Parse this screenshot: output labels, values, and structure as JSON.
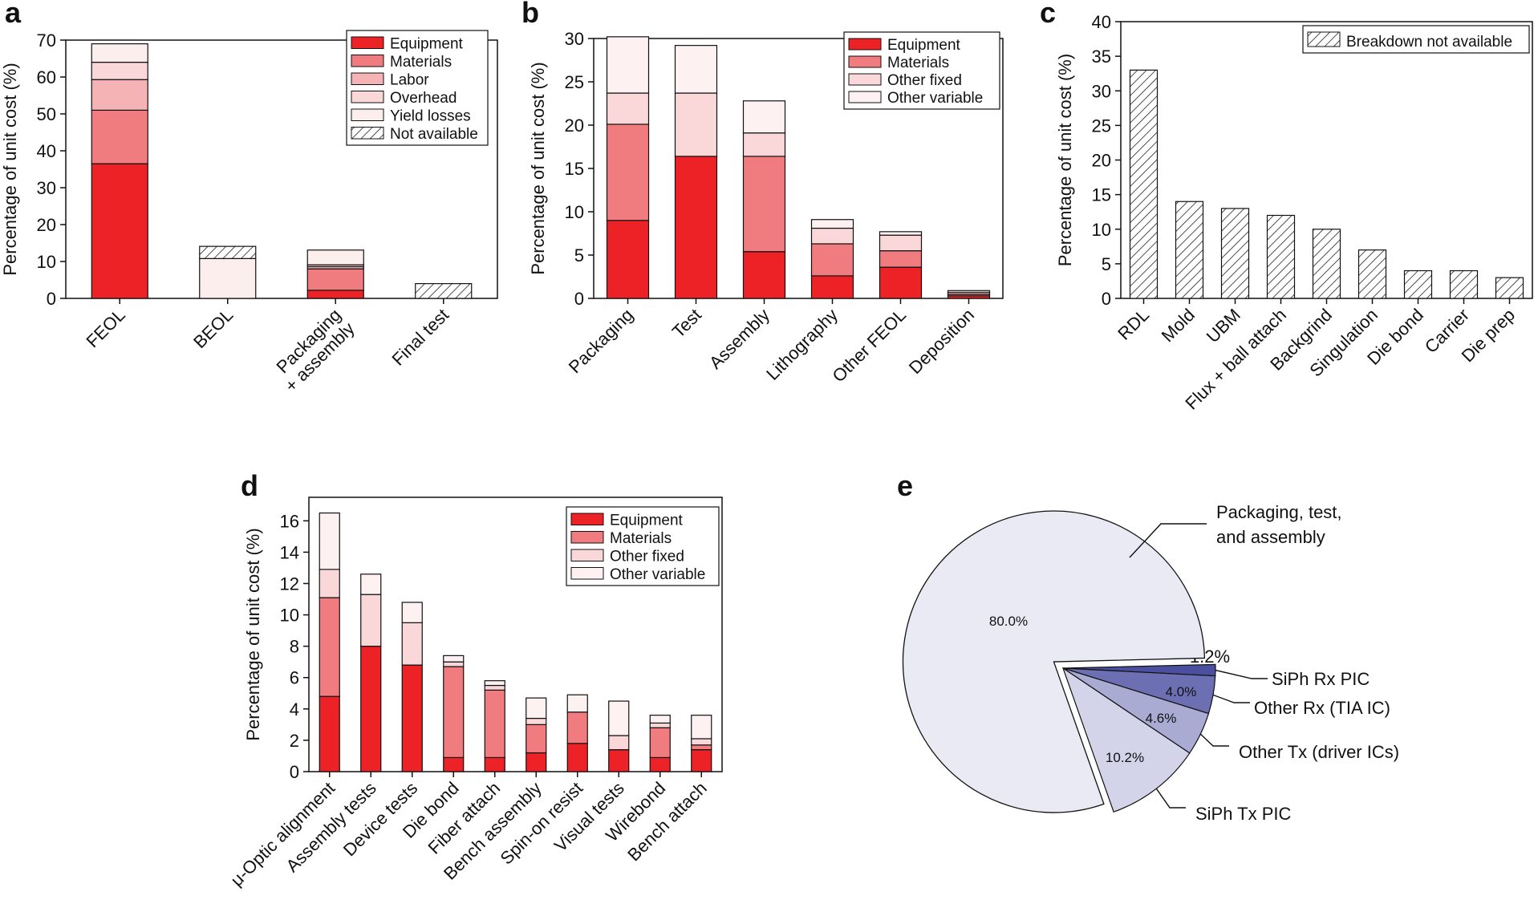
{
  "colors": {
    "equipment": "#ec2227",
    "materials": "#f07c80",
    "labor": "#f5b3b5",
    "overhead": "#fad7d8",
    "yield_losses": "#fdeeee",
    "other_fixed": "#fad7d8",
    "other_variable": "#fdf1f1",
    "deposition_dark": "#555555",
    "pie_packaging": "#eaeaf5",
    "pie_rx_pic": "#4a4fa0",
    "pie_rx_tia": "#6c70b3",
    "pie_tx_driver": "#a9abd3",
    "pie_tx_pic": "#d3d4ea"
  },
  "chart_data": [
    {
      "panel": "a",
      "type": "bar",
      "stacked": true,
      "ylabel": "Percentage of unit cost (%)",
      "ylim": [
        0,
        70
      ],
      "yticks": [
        0,
        10,
        20,
        30,
        40,
        50,
        60,
        70
      ],
      "categories": [
        "FEOL",
        "BEOL",
        "Packaging\n+ assembly",
        "Final test"
      ],
      "legend_position": "top-right",
      "series": [
        {
          "name": "Equipment",
          "key": "equipment",
          "values": [
            36.5,
            0,
            2.2,
            0
          ]
        },
        {
          "name": "Materials",
          "key": "materials",
          "values": [
            14.5,
            0,
            5.8,
            0
          ]
        },
        {
          "name": "Labor",
          "key": "labor",
          "values": [
            8.3,
            0,
            0.6,
            0
          ]
        },
        {
          "name": "Overhead",
          "key": "overhead",
          "values": [
            4.7,
            0,
            0.5,
            0
          ]
        },
        {
          "name": "Yield losses",
          "key": "yield_losses",
          "values": [
            5.0,
            10.8,
            4.0,
            0
          ]
        },
        {
          "name": "Not available",
          "key": "hatch",
          "values": [
            0,
            3.3,
            0,
            4.0
          ]
        }
      ]
    },
    {
      "panel": "b",
      "type": "bar",
      "stacked": true,
      "ylabel": "Percentage of unit cost (%)",
      "ylim": [
        0,
        30
      ],
      "yticks": [
        0,
        5,
        10,
        15,
        20,
        25,
        30
      ],
      "categories": [
        "Packaging",
        "Test",
        "Assembly",
        "Lithography",
        "Other FEOL",
        "Deposition"
      ],
      "legend_position": "top-right",
      "series": [
        {
          "name": "Equipment",
          "key": "equipment",
          "values": [
            9.0,
            16.4,
            5.4,
            2.6,
            3.6,
            0.3
          ]
        },
        {
          "name": "Materials",
          "key": "materials",
          "values": [
            11.1,
            0,
            11.0,
            3.7,
            1.9,
            0.2
          ]
        },
        {
          "name": "Other fixed",
          "key": "other_fixed",
          "values": [
            3.6,
            7.3,
            2.7,
            1.8,
            1.8,
            0.2
          ]
        },
        {
          "name": "Other variable",
          "key": "other_variable",
          "values": [
            6.5,
            5.5,
            3.7,
            1.0,
            0.4,
            0.2
          ]
        }
      ]
    },
    {
      "panel": "c",
      "type": "bar",
      "ylabel": "Percentage of unit cost (%)",
      "ylim": [
        0,
        40
      ],
      "yticks": [
        0,
        5,
        10,
        15,
        20,
        25,
        30,
        35,
        40
      ],
      "categories": [
        "RDL",
        "Mold",
        "UBM",
        "Flux + ball attach",
        "Backgrind",
        "Singulation",
        "Die bond",
        "Carrier",
        "Die prep"
      ],
      "legend_position": "top-right",
      "series": [
        {
          "name": "Breakdown not available",
          "key": "hatch",
          "values": [
            33,
            14,
            13,
            12,
            10,
            7,
            4,
            4,
            3
          ]
        }
      ]
    },
    {
      "panel": "d",
      "type": "bar",
      "stacked": true,
      "ylabel": "Percentage of unit cost (%)",
      "ylim": [
        0,
        17.5
      ],
      "yticks": [
        0,
        2,
        4,
        6,
        8,
        10,
        12,
        14,
        16
      ],
      "categories": [
        "μ-Optic alignment",
        "Assembly tests",
        "Device tests",
        "Die bond",
        "Fiber attach",
        "Bench assembly",
        "Spin-on resist",
        "Visual tests",
        "Wirebond",
        "Bench attach"
      ],
      "legend_position": "top-right",
      "series": [
        {
          "name": "Equipment",
          "key": "equipment",
          "values": [
            4.8,
            8.0,
            6.8,
            0.9,
            0.9,
            1.2,
            1.8,
            1.4,
            0.9,
            1.4
          ]
        },
        {
          "name": "Materials",
          "key": "materials",
          "values": [
            6.3,
            0,
            0,
            5.8,
            4.3,
            1.8,
            2.0,
            0,
            1.9,
            0.3
          ]
        },
        {
          "name": "Other fixed",
          "key": "other_fixed",
          "values": [
            1.8,
            3.3,
            2.7,
            0.3,
            0.3,
            0.4,
            0,
            0.9,
            0.3,
            0.4
          ]
        },
        {
          "name": "Other variable",
          "key": "other_variable",
          "values": [
            3.6,
            1.3,
            1.3,
            0.4,
            0.3,
            1.3,
            1.1,
            2.2,
            0.5,
            1.5
          ]
        }
      ]
    },
    {
      "panel": "e",
      "type": "pie",
      "slices": [
        {
          "label": "Packaging, test,\nand assembly",
          "value": 80.0,
          "value_label": "80.0%",
          "key": "pie_packaging",
          "exploded": true
        },
        {
          "label": "SiPh Rx PIC",
          "value": 1.2,
          "value_label": "1.2%",
          "key": "pie_rx_pic"
        },
        {
          "label": "Other Rx (TIA IC)",
          "value": 4.0,
          "value_label": "4.0%",
          "key": "pie_rx_tia"
        },
        {
          "label": "Other Tx (driver ICs)",
          "value": 4.6,
          "value_label": "4.6%",
          "key": "pie_tx_driver"
        },
        {
          "label": "SiPh Tx PIC",
          "value": 10.2,
          "value_label": "10.2%",
          "key": "pie_tx_pic"
        }
      ]
    }
  ]
}
